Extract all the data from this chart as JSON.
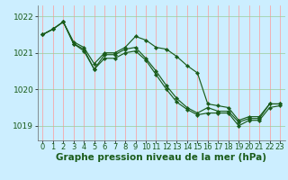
{
  "background_color": "#cceeff",
  "grid_color_red": "#ff9999",
  "grid_color_green": "#99cc99",
  "line_color": "#1a5c1a",
  "xlabel": "Graphe pression niveau de la mer (hPa)",
  "xlabel_fontsize": 7.5,
  "tick_fontsize": 6.0,
  "ytick_fontsize": 6.5,
  "ylim": [
    1018.6,
    1022.3
  ],
  "yticks": [
    1019,
    1020,
    1021,
    1022
  ],
  "xlim": [
    -0.5,
    23.5
  ],
  "xticks": [
    0,
    1,
    2,
    3,
    4,
    5,
    6,
    7,
    8,
    9,
    10,
    11,
    12,
    13,
    14,
    15,
    16,
    17,
    18,
    19,
    20,
    21,
    22,
    23
  ],
  "line1_hours": [
    0,
    1,
    2,
    3,
    4,
    5,
    6,
    7,
    8,
    9,
    10,
    11,
    12,
    13,
    14,
    15,
    16,
    17,
    18,
    19,
    20,
    21,
    22,
    23
  ],
  "line1_vals": [
    1021.5,
    1021.65,
    1021.85,
    1021.3,
    1021.15,
    1020.7,
    1021.0,
    1021.0,
    1021.15,
    1021.45,
    1021.35,
    1021.15,
    1021.1,
    1020.9,
    1020.65,
    1020.45,
    1019.6,
    1019.55,
    1019.5,
    1019.15,
    1019.25,
    1019.25,
    1019.6,
    1019.6
  ],
  "line2_hours": [
    0,
    1,
    2,
    3,
    4,
    5,
    6,
    7,
    8,
    9,
    10,
    11,
    12,
    13,
    14,
    15,
    16,
    17,
    18,
    19,
    20,
    21,
    22,
    23
  ],
  "line2_vals": [
    1021.5,
    1021.65,
    1021.85,
    1021.25,
    1021.1,
    1020.55,
    1020.95,
    1020.95,
    1021.1,
    1021.15,
    1020.85,
    1020.5,
    1020.1,
    1019.75,
    1019.5,
    1019.35,
    1019.5,
    1019.4,
    1019.4,
    1019.1,
    1019.2,
    1019.2,
    1019.6,
    1019.6
  ],
  "line3_hours": [
    0,
    1,
    2,
    3,
    4,
    5,
    6,
    7,
    8,
    9,
    10,
    11,
    12,
    13,
    14,
    15,
    16,
    17,
    18,
    19,
    20,
    21,
    22,
    23
  ],
  "line3_vals": [
    1021.5,
    1021.65,
    1021.85,
    1021.25,
    1021.05,
    1020.55,
    1020.85,
    1020.85,
    1021.0,
    1021.05,
    1020.8,
    1020.4,
    1020.0,
    1019.65,
    1019.45,
    1019.3,
    1019.35,
    1019.35,
    1019.35,
    1019.0,
    1019.15,
    1019.15,
    1019.5,
    1019.55
  ]
}
